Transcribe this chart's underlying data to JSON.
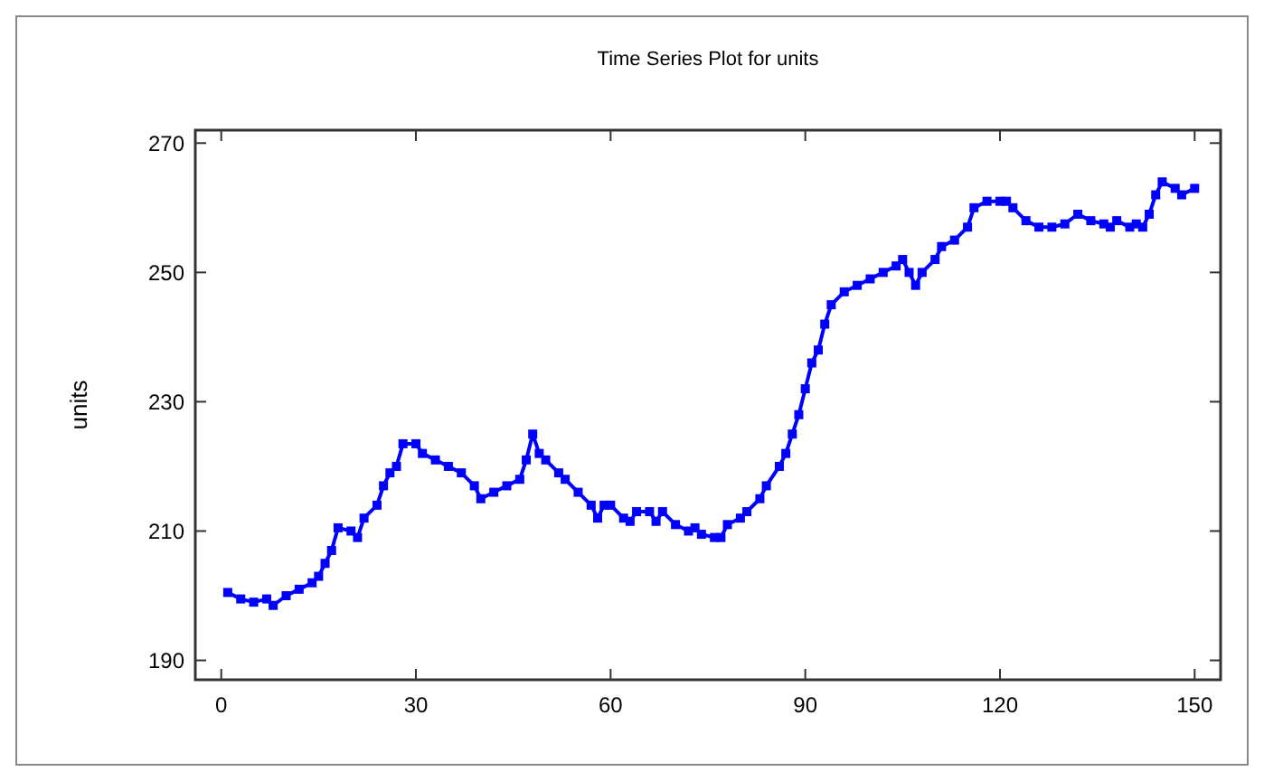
{
  "chart_data": {
    "type": "line",
    "title": "Time Series Plot for units",
    "ylabel": "units",
    "x": [
      1,
      3,
      5,
      7,
      8,
      10,
      12,
      14,
      15,
      16,
      17,
      18,
      20,
      21,
      22,
      24,
      25,
      26,
      27,
      28,
      30,
      31,
      33,
      35,
      37,
      39,
      40,
      42,
      44,
      46,
      47,
      48,
      49,
      50,
      52,
      53,
      55,
      57,
      58,
      59,
      60,
      62,
      63,
      64,
      66,
      67,
      68,
      70,
      72,
      73,
      74,
      76,
      77,
      78,
      80,
      81,
      83,
      84,
      86,
      87,
      88,
      89,
      90,
      91,
      92,
      93,
      94,
      96,
      98,
      100,
      102,
      104,
      105,
      106,
      107,
      108,
      110,
      111,
      113,
      115,
      116,
      118,
      120,
      121,
      122,
      124,
      126,
      128,
      130,
      132,
      134,
      136,
      137,
      138,
      140,
      141,
      142,
      143,
      144,
      145,
      147,
      148,
      150
    ],
    "series": [
      {
        "color": "#0000ff",
        "values": [
          200.5,
          199.5,
          199,
          199.5,
          198.5,
          200,
          201,
          202,
          203,
          205,
          207,
          210.5,
          210,
          209,
          212,
          214,
          217,
          219,
          220,
          223.5,
          223.5,
          222,
          221,
          220,
          219,
          217,
          215,
          216,
          217,
          218,
          221,
          225,
          222,
          221,
          219,
          218,
          216,
          214,
          212,
          214,
          214,
          212,
          211.5,
          213,
          213,
          211.5,
          213,
          211,
          210,
          210.5,
          209.5,
          209,
          209,
          211,
          212,
          213,
          215,
          217,
          220,
          222,
          225,
          228,
          232,
          236,
          238,
          242,
          245,
          247,
          248,
          249,
          250,
          251,
          252,
          250,
          248,
          250,
          252,
          254,
          255,
          257,
          260,
          261,
          261,
          261,
          260,
          258,
          257,
          257,
          257.5,
          259,
          258,
          257.5,
          257,
          258,
          257,
          257.5,
          257,
          259,
          262,
          264,
          263,
          262,
          263
        ]
      }
    ],
    "xlim": [
      -4,
      154
    ],
    "ylim": [
      187,
      272
    ],
    "xticks": [
      0,
      30,
      60,
      90,
      120,
      150
    ],
    "yticks": [
      190,
      210,
      230,
      250,
      270
    ],
    "marker": "square",
    "line_style": "solid"
  }
}
